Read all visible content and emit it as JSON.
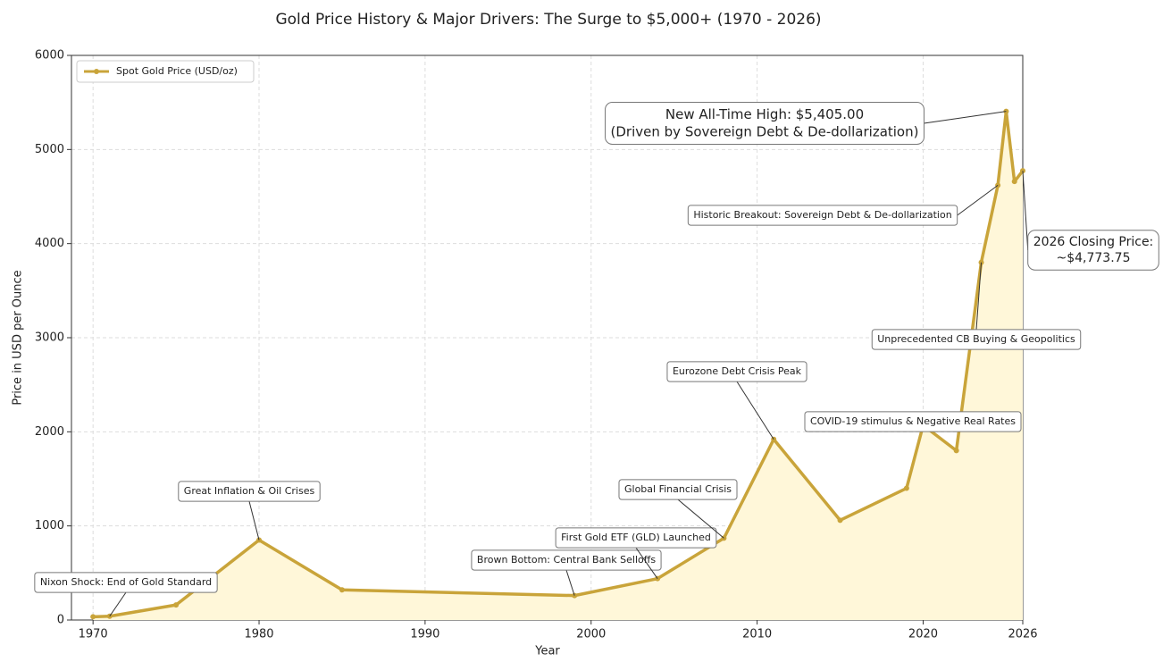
{
  "chart_data": {
    "type": "line",
    "title": "Gold Price History & Major Drivers: The Surge to $5,000+ (1970 - 2026)",
    "xlabel": "Year",
    "ylabel": "Price in USD per Ounce",
    "x": [
      1970,
      1971,
      1975,
      1980,
      1985,
      1999,
      2004,
      2008,
      2011,
      2015,
      2019,
      2020,
      2022,
      2023.5,
      2024.5,
      2025,
      2025.5,
      2026
    ],
    "series": [
      {
        "name": "Spot Gold Price (USD/oz)",
        "color": "#c9a43a",
        "values": [
          35,
          40,
          160,
          850,
          320,
          260,
          440,
          870,
          1920,
          1060,
          1400,
          2070,
          1800,
          3800,
          4620,
          5405,
          4660,
          4773.75
        ]
      }
    ],
    "xlim": [
      1968.7,
      2026
    ],
    "xticks": [
      1970,
      1980,
      1990,
      2000,
      2010,
      2020,
      2026
    ],
    "ylim": [
      0,
      6000
    ],
    "yticks": [
      0,
      1000,
      2000,
      3000,
      4000,
      5000,
      6000
    ],
    "grid": true,
    "legend": "upper left",
    "fill": "#fff7d9",
    "annotations": [
      [
        "Nixon Shock: End of Gold Standard"
      ],
      [
        "Great Inflation & Oil Crises"
      ],
      [
        "Brown Bottom: Central Bank Selloffs"
      ],
      [
        "First Gold ETF (GLD) Launched"
      ],
      [
        "Global Financial Crisis"
      ],
      [
        "Eurozone Debt Crisis Peak"
      ],
      [
        "COVID-19 stimulus & Negative Real Rates"
      ],
      [
        "Unprecedented CB Buying & Geopolitics"
      ],
      [
        "Historic Breakout: Sovereign Debt & De-dollarization"
      ],
      [
        "New All-Time High: $5,405.00",
        "(Driven by Sovereign Debt & De-dollarization)"
      ],
      [
        "2026 Closing Price:",
        "~$4,773.75"
      ]
    ]
  }
}
